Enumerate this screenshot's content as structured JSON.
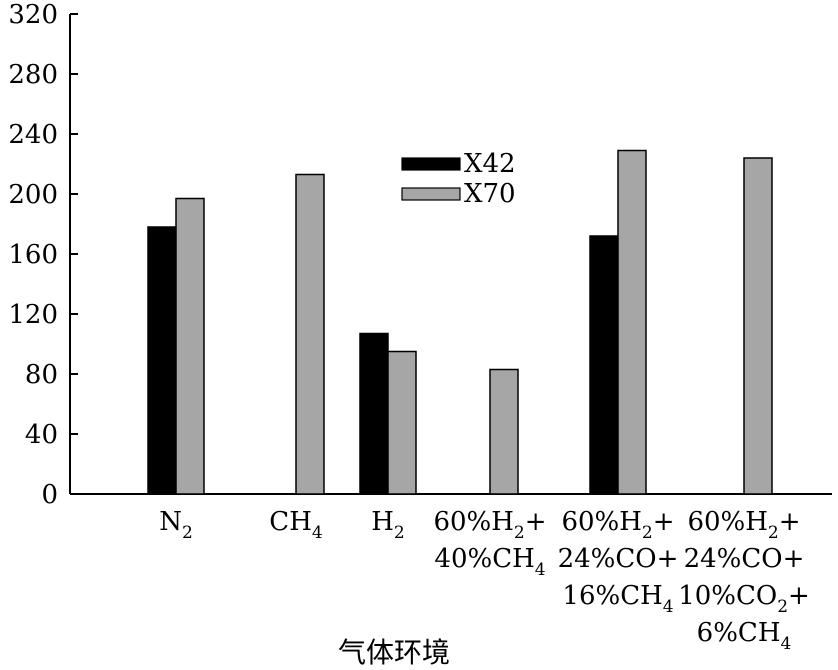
{
  "chart_data": {
    "type": "bar",
    "title": "",
    "xlabel": "气体环境",
    "ylabel": "",
    "ylim": [
      0,
      320
    ],
    "yticks": [
      "0",
      "40",
      "80",
      "120",
      "160",
      "200",
      "240",
      "280",
      "320"
    ],
    "grid": false,
    "legend_position": "top-center",
    "categories": [
      "N2",
      "CH4",
      "H2",
      "60%H2+ 40%CH4",
      "60%H2+ 24%CO+ 16%CH4",
      "60%H2+ 24%CO+ 10%CO2+ 6%CH4"
    ],
    "category_lines": [
      [
        [
          {
            "t": "N"
          },
          {
            "t": "2",
            "sub": true
          }
        ]
      ],
      [
        [
          {
            "t": "CH"
          },
          {
            "t": "4",
            "sub": true
          }
        ]
      ],
      [
        [
          {
            "t": "H"
          },
          {
            "t": "2",
            "sub": true
          }
        ]
      ],
      [
        [
          {
            "t": "60%H"
          },
          {
            "t": "2",
            "sub": true
          },
          {
            "t": "+"
          }
        ],
        [
          {
            "t": "40%CH"
          },
          {
            "t": "4",
            "sub": true
          }
        ]
      ],
      [
        [
          {
            "t": "60%H"
          },
          {
            "t": "2",
            "sub": true
          },
          {
            "t": "+"
          }
        ],
        [
          {
            "t": "24%CO+"
          }
        ],
        [
          {
            "t": "16%CH"
          },
          {
            "t": "4",
            "sub": true
          }
        ]
      ],
      [
        [
          {
            "t": "60%H"
          },
          {
            "t": "2",
            "sub": true
          },
          {
            "t": "+"
          }
        ],
        [
          {
            "t": "24%CO+"
          }
        ],
        [
          {
            "t": "10%CO"
          },
          {
            "t": "2",
            "sub": true
          },
          {
            "t": "+"
          }
        ],
        [
          {
            "t": "6%CH"
          },
          {
            "t": "4",
            "sub": true
          }
        ]
      ]
    ],
    "series": [
      {
        "name": "X42",
        "color": "#000000",
        "values": [
          178,
          null,
          107,
          null,
          172,
          null
        ]
      },
      {
        "name": "X70",
        "color": "#a6a6a6",
        "values": [
          197,
          213,
          95,
          83,
          229,
          224
        ]
      }
    ]
  }
}
